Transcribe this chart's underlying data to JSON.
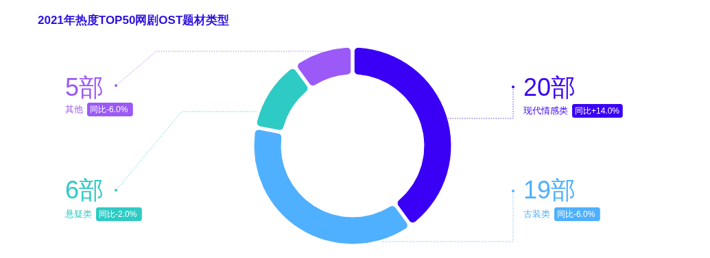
{
  "chart_data": {
    "type": "donut",
    "title": "2021年热度TOP50网剧OST题材类型",
    "categories": [
      "现代情感类",
      "古装类",
      "悬疑类",
      "其他"
    ],
    "values": [
      20,
      19,
      6,
      5
    ],
    "colors": [
      "#3a00f5",
      "#4fb0ff",
      "#2ecbc4",
      "#9b59f7"
    ],
    "value_labels": [
      "20部",
      "19部",
      "6部",
      "5部"
    ],
    "annotations": [
      "同比+14.0%",
      "同比-6.0%",
      "同比-2.0%",
      "同比-6.0%"
    ]
  }
}
